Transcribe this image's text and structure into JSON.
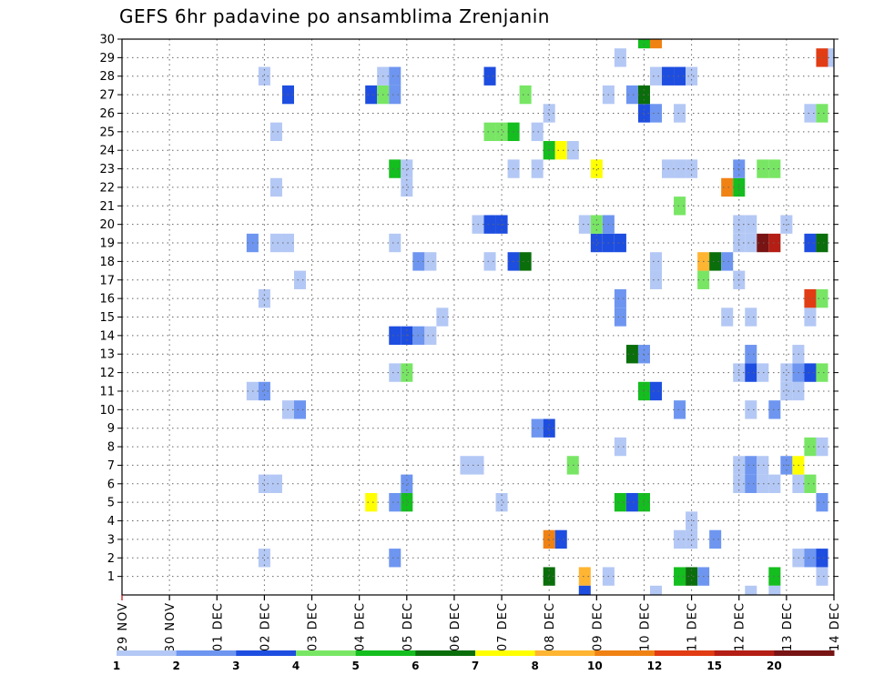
{
  "chart_data": {
    "type": "heatmap",
    "title": "GEFS 6hr padavine po ansamblima Zrenjanin",
    "x_ticks": [
      "29 NOV",
      "30 NOV",
      "01 DEC",
      "02 DEC",
      "03 DEC",
      "04 DEC",
      "05 DEC",
      "06 DEC",
      "07 DEC",
      "08 DEC",
      "09 DEC",
      "10 DEC",
      "11 DEC",
      "12 DEC",
      "13 DEC",
      "14 DEC"
    ],
    "x_unit_steps_per_day": 4,
    "x_range_steps": [
      0,
      60
    ],
    "y_ticks": [
      1,
      2,
      3,
      4,
      5,
      6,
      7,
      8,
      9,
      10,
      11,
      12,
      13,
      14,
      15,
      16,
      17,
      18,
      19,
      20,
      21,
      22,
      23,
      24,
      25,
      26,
      27,
      28,
      29,
      30
    ],
    "y_range": [
      0,
      30
    ],
    "grid": true,
    "colorbar": {
      "labels": [
        "1",
        "2",
        "3",
        "4",
        "5",
        "6",
        "7",
        "8",
        "10",
        "12",
        "15",
        "20"
      ],
      "colors": [
        "#b4c8f5",
        "#6e96f0",
        "#1e4ee0",
        "#78e664",
        "#14be1e",
        "#0a6e0a",
        "#ffff00",
        "#ffb432",
        "#f08214",
        "#e13c14",
        "#b41e14",
        "#781414"
      ]
    },
    "cells": [
      [
        39,
        1,
        8
      ],
      [
        36,
        1,
        6
      ],
      [
        41,
        1,
        1
      ],
      [
        47,
        1,
        5
      ],
      [
        48,
        1,
        6
      ],
      [
        49,
        1,
        2
      ],
      [
        55,
        1,
        5
      ],
      [
        59,
        1,
        1
      ],
      [
        12,
        2,
        1
      ],
      [
        23,
        2,
        2
      ],
      [
        57,
        2,
        1
      ],
      [
        58,
        2,
        2
      ],
      [
        59,
        2,
        3
      ],
      [
        36,
        3,
        9
      ],
      [
        37,
        3,
        3
      ],
      [
        47,
        3,
        1
      ],
      [
        48,
        3,
        1
      ],
      [
        50,
        3,
        2
      ],
      [
        48,
        4,
        1
      ],
      [
        21,
        5,
        7
      ],
      [
        23,
        5,
        2
      ],
      [
        24,
        5,
        5
      ],
      [
        32,
        5,
        1
      ],
      [
        42,
        5,
        5
      ],
      [
        43,
        5,
        3
      ],
      [
        44,
        5,
        5
      ],
      [
        59,
        5,
        2
      ],
      [
        12,
        6,
        1
      ],
      [
        13,
        6,
        1
      ],
      [
        24,
        6,
        2
      ],
      [
        52,
        6,
        1
      ],
      [
        53,
        6,
        2
      ],
      [
        54,
        6,
        1
      ],
      [
        55,
        6,
        1
      ],
      [
        57,
        6,
        1
      ],
      [
        58,
        6,
        4
      ],
      [
        29,
        7,
        1
      ],
      [
        30,
        7,
        1
      ],
      [
        38,
        7,
        4
      ],
      [
        52,
        7,
        1
      ],
      [
        53,
        7,
        2
      ],
      [
        54,
        7,
        1
      ],
      [
        56,
        7,
        2
      ],
      [
        57,
        7,
        7
      ],
      [
        42,
        8,
        1
      ],
      [
        58,
        8,
        4
      ],
      [
        59,
        8,
        1
      ],
      [
        35,
        9,
        2
      ],
      [
        36,
        9,
        3
      ],
      [
        14,
        10,
        1
      ],
      [
        15,
        10,
        2
      ],
      [
        47,
        10,
        2
      ],
      [
        53,
        10,
        1
      ],
      [
        55,
        10,
        2
      ],
      [
        11,
        11,
        1
      ],
      [
        12,
        11,
        2
      ],
      [
        44,
        11,
        5
      ],
      [
        45,
        11,
        3
      ],
      [
        56,
        11,
        1
      ],
      [
        57,
        11,
        1
      ],
      [
        23,
        12,
        1
      ],
      [
        24,
        12,
        4
      ],
      [
        52,
        12,
        1
      ],
      [
        53,
        12,
        3
      ],
      [
        54,
        12,
        1
      ],
      [
        56,
        12,
        1
      ],
      [
        57,
        12,
        2
      ],
      [
        58,
        12,
        3
      ],
      [
        59,
        12,
        4
      ],
      [
        43,
        13,
        6
      ],
      [
        44,
        13,
        2
      ],
      [
        53,
        13,
        2
      ],
      [
        57,
        13,
        1
      ],
      [
        23,
        14,
        3
      ],
      [
        24,
        14,
        3
      ],
      [
        25,
        14,
        2
      ],
      [
        26,
        14,
        1
      ],
      [
        27,
        15,
        1
      ],
      [
        42,
        15,
        2
      ],
      [
        51,
        15,
        1
      ],
      [
        53,
        15,
        1
      ],
      [
        58,
        15,
        1
      ],
      [
        12,
        16,
        1
      ],
      [
        42,
        16,
        2
      ],
      [
        58,
        16,
        10
      ],
      [
        59,
        16,
        4
      ],
      [
        15,
        17,
        1
      ],
      [
        45,
        17,
        1
      ],
      [
        49,
        17,
        4
      ],
      [
        52,
        17,
        1
      ],
      [
        25,
        18,
        2
      ],
      [
        26,
        18,
        1
      ],
      [
        31,
        18,
        1
      ],
      [
        33,
        18,
        3
      ],
      [
        34,
        18,
        6
      ],
      [
        45,
        18,
        1
      ],
      [
        49,
        18,
        8
      ],
      [
        50,
        18,
        6
      ],
      [
        51,
        18,
        2
      ],
      [
        11,
        19,
        2
      ],
      [
        13,
        19,
        1
      ],
      [
        14,
        19,
        1
      ],
      [
        23,
        19,
        1
      ],
      [
        40,
        19,
        3
      ],
      [
        41,
        19,
        3
      ],
      [
        42,
        19,
        3
      ],
      [
        52,
        19,
        1
      ],
      [
        53,
        19,
        1
      ],
      [
        54,
        19,
        12
      ],
      [
        55,
        19,
        11
      ],
      [
        58,
        19,
        3
      ],
      [
        59,
        19,
        6
      ],
      [
        30,
        20,
        1
      ],
      [
        31,
        20,
        3
      ],
      [
        32,
        20,
        3
      ],
      [
        39,
        20,
        1
      ],
      [
        40,
        20,
        4
      ],
      [
        41,
        20,
        2
      ],
      [
        52,
        20,
        1
      ],
      [
        53,
        20,
        1
      ],
      [
        56,
        20,
        1
      ],
      [
        47,
        21,
        4
      ],
      [
        13,
        22,
        1
      ],
      [
        24,
        22,
        1
      ],
      [
        51,
        22,
        9
      ],
      [
        52,
        22,
        5
      ],
      [
        23,
        23,
        5
      ],
      [
        24,
        23,
        1
      ],
      [
        33,
        23,
        1
      ],
      [
        35,
        23,
        1
      ],
      [
        40,
        23,
        7
      ],
      [
        46,
        23,
        1
      ],
      [
        47,
        23,
        1
      ],
      [
        48,
        23,
        1
      ],
      [
        52,
        23,
        2
      ],
      [
        54,
        23,
        4
      ],
      [
        55,
        23,
        4
      ],
      [
        36,
        24,
        5
      ],
      [
        37,
        24,
        7
      ],
      [
        38,
        24,
        1
      ],
      [
        13,
        25,
        1
      ],
      [
        31,
        25,
        4
      ],
      [
        32,
        25,
        4
      ],
      [
        33,
        25,
        5
      ],
      [
        35,
        25,
        1
      ],
      [
        36,
        26,
        1
      ],
      [
        44,
        26,
        3
      ],
      [
        45,
        26,
        2
      ],
      [
        47,
        26,
        1
      ],
      [
        58,
        26,
        1
      ],
      [
        59,
        26,
        4
      ],
      [
        14,
        27,
        3
      ],
      [
        21,
        27,
        3
      ],
      [
        22,
        27,
        4
      ],
      [
        23,
        27,
        2
      ],
      [
        34,
        27,
        4
      ],
      [
        41,
        27,
        1
      ],
      [
        43,
        27,
        2
      ],
      [
        44,
        27,
        6
      ],
      [
        12,
        28,
        1
      ],
      [
        22,
        28,
        1
      ],
      [
        23,
        28,
        2
      ],
      [
        31,
        28,
        3
      ],
      [
        45,
        28,
        1
      ],
      [
        46,
        28,
        3
      ],
      [
        47,
        28,
        3
      ],
      [
        48,
        28,
        1
      ],
      [
        42,
        29,
        1
      ],
      [
        59,
        29,
        10
      ],
      [
        60,
        29,
        1
      ],
      [
        44,
        30,
        5
      ],
      [
        45,
        30,
        9
      ],
      [
        39,
        0,
        3
      ],
      [
        45,
        0,
        1
      ],
      [
        53,
        0,
        1
      ],
      [
        55,
        0,
        1
      ]
    ]
  }
}
